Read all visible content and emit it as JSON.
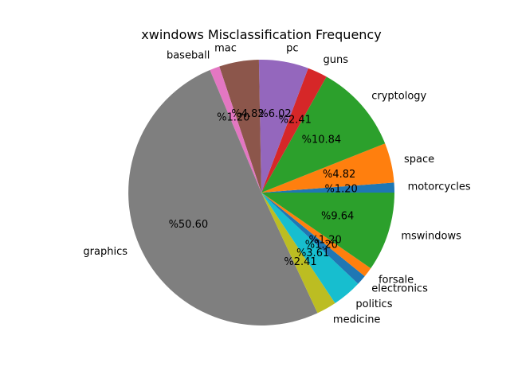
{
  "chart_data": {
    "type": "pie",
    "title": "xwindows Misclassification Frequency",
    "start_angle_deg": 0,
    "direction": "counterclockwise",
    "slices": [
      {
        "label": "motorcycles",
        "value": 1.2,
        "pct_label": "%1.20",
        "color": "#1f77b4"
      },
      {
        "label": "space",
        "value": 4.82,
        "pct_label": "%4.82",
        "color": "#ff7f0e"
      },
      {
        "label": "cryptology",
        "value": 10.84,
        "pct_label": "%10.84",
        "color": "#2ca02c"
      },
      {
        "label": "guns",
        "value": 2.41,
        "pct_label": "%2.41",
        "color": "#d62728"
      },
      {
        "label": "pc",
        "value": 6.02,
        "pct_label": "%6.02",
        "color": "#9467bd"
      },
      {
        "label": "mac",
        "value": 4.82,
        "pct_label": "%4.82",
        "color": "#8c564b"
      },
      {
        "label": "baseball",
        "value": 1.2,
        "pct_label": "%1.20",
        "color": "#e377c2"
      },
      {
        "label": "graphics",
        "value": 50.6,
        "pct_label": "%50.60",
        "color": "#7f7f7f"
      },
      {
        "label": "medicine",
        "value": 2.41,
        "pct_label": "%2.41",
        "color": "#bcbd22"
      },
      {
        "label": "politics",
        "value": 3.61,
        "pct_label": "%3.61",
        "color": "#17becf"
      },
      {
        "label": "electronics",
        "value": 1.2,
        "pct_label": "%1.20",
        "color": "#1f77b4"
      },
      {
        "label": "forsale",
        "value": 1.2,
        "pct_label": "%1.20",
        "color": "#ff7f0e"
      },
      {
        "label": "mswindows",
        "value": 9.64,
        "pct_label": "%9.64",
        "color": "#2ca02c"
      }
    ]
  }
}
